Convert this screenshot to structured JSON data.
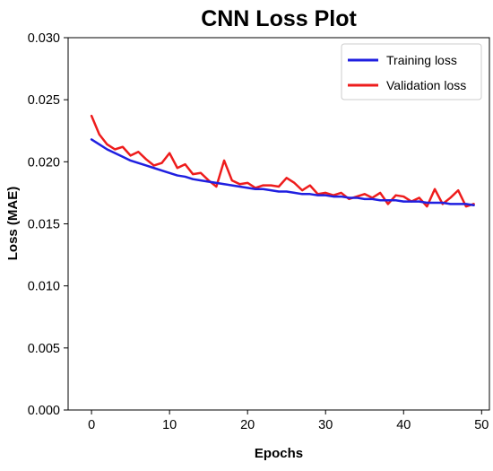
{
  "chart_data": {
    "type": "line",
    "title": "CNN Loss Plot",
    "xlabel": "Epochs",
    "ylabel": "Loss (MAE)",
    "xlim": [
      -3,
      51
    ],
    "ylim": [
      0.0,
      0.03
    ],
    "x_ticks": [
      0,
      10,
      20,
      30,
      40,
      50
    ],
    "y_ticks": [
      0.0,
      0.005,
      0.01,
      0.015,
      0.02,
      0.025,
      0.03
    ],
    "x_tick_labels": [
      "0",
      "10",
      "20",
      "30",
      "40",
      "50"
    ],
    "y_tick_labels": [
      "0.000",
      "0.005",
      "0.010",
      "0.015",
      "0.020",
      "0.025",
      "0.030"
    ],
    "grid": false,
    "legend_position": "top-right",
    "x": [
      0,
      1,
      2,
      3,
      4,
      5,
      6,
      7,
      8,
      9,
      10,
      11,
      12,
      13,
      14,
      15,
      16,
      17,
      18,
      19,
      20,
      21,
      22,
      23,
      24,
      25,
      26,
      27,
      28,
      29,
      30,
      31,
      32,
      33,
      34,
      35,
      36,
      37,
      38,
      39,
      40,
      41,
      42,
      43,
      44,
      45,
      46,
      47,
      48,
      49
    ],
    "series": [
      {
        "name": "Training loss",
        "color": "#1f1fe0",
        "values": [
          0.0218,
          0.0214,
          0.021,
          0.0207,
          0.0204,
          0.0201,
          0.0199,
          0.0197,
          0.0195,
          0.0193,
          0.0191,
          0.0189,
          0.0188,
          0.0186,
          0.0185,
          0.0184,
          0.0183,
          0.0182,
          0.0181,
          0.018,
          0.0179,
          0.0178,
          0.0178,
          0.0177,
          0.0176,
          0.0176,
          0.0175,
          0.0174,
          0.0174,
          0.0173,
          0.0173,
          0.0172,
          0.0172,
          0.0171,
          0.0171,
          0.017,
          0.017,
          0.0169,
          0.0169,
          0.0169,
          0.0168,
          0.0168,
          0.0168,
          0.0167,
          0.0167,
          0.0167,
          0.0166,
          0.0166,
          0.0166,
          0.0165
        ]
      },
      {
        "name": "Validation loss",
        "color": "#ee1c1c",
        "values": [
          0.0237,
          0.0222,
          0.0214,
          0.021,
          0.0212,
          0.0205,
          0.0208,
          0.0202,
          0.0197,
          0.0199,
          0.0207,
          0.0195,
          0.0198,
          0.019,
          0.0191,
          0.0185,
          0.018,
          0.0201,
          0.0185,
          0.0182,
          0.0183,
          0.0179,
          0.0181,
          0.0181,
          0.018,
          0.0187,
          0.0183,
          0.0177,
          0.0181,
          0.0174,
          0.0175,
          0.0173,
          0.0175,
          0.017,
          0.0172,
          0.0174,
          0.0171,
          0.0175,
          0.0166,
          0.0173,
          0.0172,
          0.0168,
          0.0171,
          0.0164,
          0.0178,
          0.0166,
          0.0171,
          0.0177,
          0.0164,
          0.0166
        ]
      }
    ]
  }
}
